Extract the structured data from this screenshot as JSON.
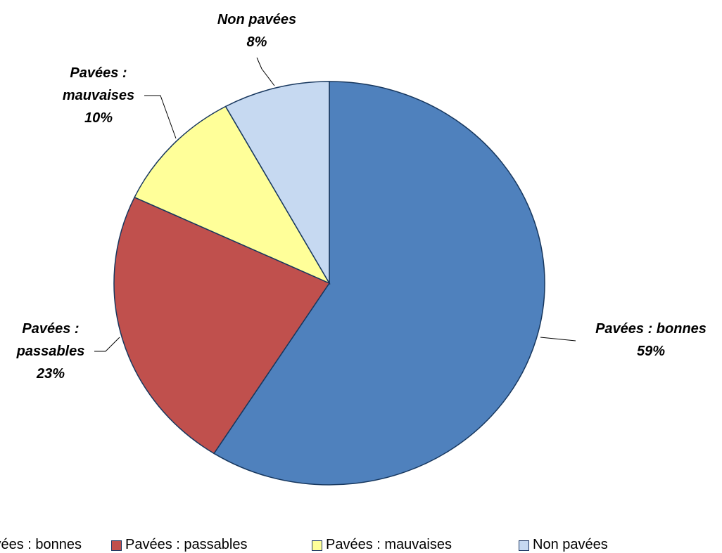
{
  "chart_data": {
    "type": "pie",
    "categories": [
      "Pavées : bonnes",
      "Pavées : passables",
      "Pavées : mauvaises",
      "Non pavées"
    ],
    "values": [
      59,
      23,
      10,
      8
    ],
    "value_labels": [
      "59%",
      "23%",
      "10%",
      "8%"
    ],
    "colors": [
      "#4f81bd",
      "#c0504d",
      "#ffff99",
      "#c6d9f1"
    ],
    "legend": "bottom"
  }
}
